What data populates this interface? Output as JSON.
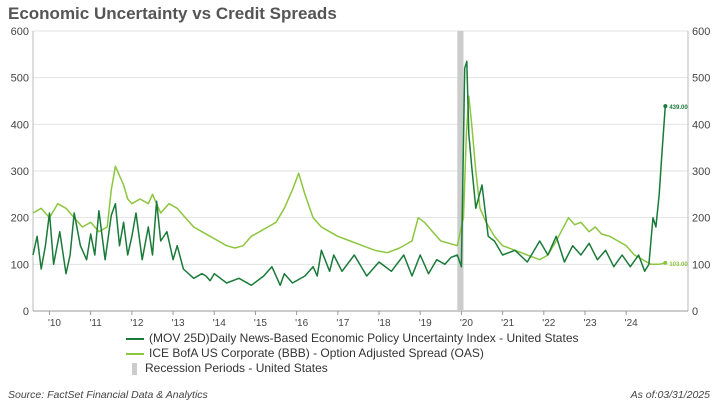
{
  "chart_data": {
    "type": "line",
    "title": "Economic Uncertainty vs Credit Spreads",
    "ylim": [
      0,
      600
    ],
    "y_ticks": [
      "0",
      "100",
      "200",
      "300",
      "400",
      "500",
      "600"
    ],
    "x_range": [
      2009.6,
      2025.5
    ],
    "x_ticks": [
      {
        "label": "'10",
        "x": 2010.0
      },
      {
        "label": "'11",
        "x": 2011.0
      },
      {
        "label": "'12",
        "x": 2012.0
      },
      {
        "label": "'13",
        "x": 2013.0
      },
      {
        "label": "'14",
        "x": 2014.0
      },
      {
        "label": "'15",
        "x": 2015.0
      },
      {
        "label": "'16",
        "x": 2016.0
      },
      {
        "label": "'17",
        "x": 2017.0
      },
      {
        "label": "'18",
        "x": 2018.0
      },
      {
        "label": "'19",
        "x": 2019.0
      },
      {
        "label": "'20",
        "x": 2020.0
      },
      {
        "label": "'21",
        "x": 2021.0
      },
      {
        "label": "'22",
        "x": 2022.0
      },
      {
        "label": "'23",
        "x": 2023.0
      },
      {
        "label": "'24",
        "x": 2024.0
      }
    ],
    "recession": {
      "start": 2019.9,
      "end": 2020.05,
      "color": "#cccccc"
    },
    "series": [
      {
        "name": "(MOV 25D)Daily News-Based Economic Policy Uncertainty Index - United States",
        "color": "#1a7a3a",
        "end_label": "439.00",
        "x": [
          2009.6,
          2009.7,
          2009.8,
          2009.9,
          2010.0,
          2010.1,
          2010.25,
          2010.4,
          2010.5,
          2010.6,
          2010.75,
          2010.9,
          2011.0,
          2011.1,
          2011.2,
          2011.35,
          2011.5,
          2011.6,
          2011.7,
          2011.8,
          2011.9,
          2012.0,
          2012.1,
          2012.25,
          2012.4,
          2012.5,
          2012.6,
          2012.7,
          2012.85,
          2013.0,
          2013.1,
          2013.25,
          2013.5,
          2013.7,
          2013.8,
          2013.9,
          2014.0,
          2014.3,
          2014.6,
          2014.9,
          2015.2,
          2015.4,
          2015.6,
          2015.7,
          2015.9,
          2016.2,
          2016.4,
          2016.5,
          2016.6,
          2016.8,
          2016.9,
          2017.1,
          2017.4,
          2017.7,
          2018.0,
          2018.3,
          2018.6,
          2018.8,
          2019.0,
          2019.2,
          2019.4,
          2019.6,
          2019.75,
          2019.9,
          2020.0,
          2020.08,
          2020.13,
          2020.18,
          2020.25,
          2020.35,
          2020.5,
          2020.65,
          2020.8,
          2021.0,
          2021.3,
          2021.6,
          2021.9,
          2022.1,
          2022.3,
          2022.5,
          2022.7,
          2022.9,
          2023.1,
          2023.3,
          2023.5,
          2023.7,
          2023.9,
          2024.1,
          2024.3,
          2024.45,
          2024.55,
          2024.65,
          2024.72,
          2024.8,
          2024.87,
          2024.95
        ],
        "values": [
          120,
          160,
          90,
          140,
          210,
          100,
          170,
          80,
          120,
          210,
          140,
          110,
          165,
          120,
          215,
          110,
          205,
          230,
          140,
          190,
          120,
          160,
          210,
          110,
          180,
          120,
          235,
          150,
          170,
          110,
          140,
          90,
          70,
          80,
          75,
          65,
          80,
          60,
          70,
          55,
          75,
          95,
          55,
          80,
          60,
          75,
          95,
          75,
          130,
          85,
          120,
          85,
          120,
          75,
          105,
          85,
          120,
          75,
          120,
          80,
          110,
          100,
          115,
          120,
          95,
          520,
          535,
          380,
          310,
          220,
          270,
          160,
          150,
          120,
          130,
          105,
          150,
          120,
          160,
          105,
          140,
          120,
          145,
          110,
          130,
          95,
          120,
          95,
          120,
          85,
          100,
          200,
          180,
          250,
          340,
          439
        ]
      },
      {
        "name": "ICE BofA US Corporate (BBB) - Option Adjusted Spread (OAS)",
        "color": "#8cc63f",
        "end_label": "103.00",
        "x": [
          2009.6,
          2009.8,
          2010.0,
          2010.2,
          2010.4,
          2010.5,
          2010.6,
          2010.8,
          2011.0,
          2011.2,
          2011.4,
          2011.5,
          2011.6,
          2011.7,
          2011.8,
          2011.9,
          2012.0,
          2012.2,
          2012.4,
          2012.5,
          2012.7,
          2012.9,
          2013.1,
          2013.3,
          2013.5,
          2013.7,
          2013.9,
          2014.1,
          2014.3,
          2014.5,
          2014.7,
          2014.9,
          2015.1,
          2015.3,
          2015.5,
          2015.7,
          2015.9,
          2016.05,
          2016.2,
          2016.4,
          2016.6,
          2016.8,
          2017.0,
          2017.3,
          2017.6,
          2017.9,
          2018.2,
          2018.5,
          2018.8,
          2018.95,
          2019.1,
          2019.3,
          2019.5,
          2019.7,
          2019.9,
          2020.05,
          2020.12,
          2020.18,
          2020.25,
          2020.35,
          2020.45,
          2020.6,
          2020.8,
          2021.0,
          2021.3,
          2021.6,
          2021.9,
          2022.1,
          2022.3,
          2022.45,
          2022.6,
          2022.75,
          2022.9,
          2023.1,
          2023.25,
          2023.4,
          2023.6,
          2023.8,
          2024.0,
          2024.2,
          2024.4,
          2024.6,
          2024.8,
          2024.95
        ],
        "values": [
          210,
          220,
          200,
          230,
          220,
          210,
          200,
          180,
          190,
          170,
          180,
          260,
          310,
          290,
          270,
          240,
          230,
          240,
          230,
          250,
          210,
          230,
          220,
          200,
          180,
          170,
          160,
          150,
          140,
          135,
          140,
          160,
          170,
          180,
          190,
          220,
          260,
          295,
          250,
          200,
          180,
          170,
          160,
          150,
          140,
          130,
          125,
          135,
          150,
          200,
          190,
          170,
          150,
          145,
          140,
          200,
          380,
          460,
          400,
          300,
          220,
          190,
          160,
          140,
          130,
          120,
          110,
          120,
          150,
          175,
          200,
          185,
          190,
          170,
          180,
          165,
          160,
          150,
          140,
          120,
          110,
          100,
          100,
          103
        ]
      },
      {
        "name": "Recession Periods - United States",
        "color": "#cccccc"
      }
    ],
    "x_tick_labels": [
      "'10",
      "'11",
      "'12",
      "'13",
      "'14",
      "'15",
      "'16",
      "'17",
      "'18",
      "'19",
      "'20",
      "'21",
      "'22",
      "'23",
      "'24"
    ]
  },
  "footer": {
    "source": "Source: FactSet Financial Data & Analytics",
    "as_of": "As of:03/31/2025"
  }
}
